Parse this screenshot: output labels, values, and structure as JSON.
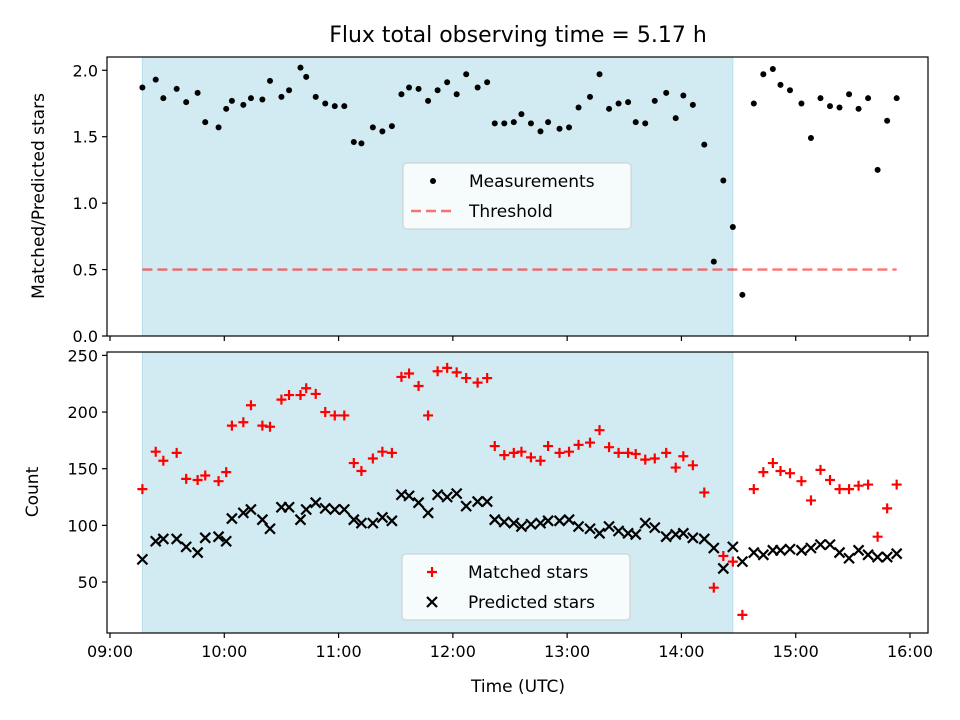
{
  "chart_data": [
    {
      "type": "scatter",
      "title": "Flux total observing time = 5.17 h",
      "xlabel": "",
      "ylabel": "Matched/Predicted stars",
      "xlim": [
        "09:00",
        "16:00"
      ],
      "ylim": [
        0,
        2.1
      ],
      "yticks": [
        "0.0",
        "0.5",
        "1.0",
        "1.5",
        "2.0"
      ],
      "xticks": [],
      "shaded_span": {
        "start": "09:17",
        "end": "14:27",
        "color": "#add8e6"
      },
      "legend_position": "center-right",
      "legend": [
        {
          "label": "Measurements",
          "marker": "dot",
          "color": "#000000"
        },
        {
          "label": "Threshold",
          "marker": "dashed-line",
          "color": "#ff0000"
        }
      ],
      "threshold": {
        "value": 0.5,
        "from": "09:17",
        "to": "15:53",
        "color": "#ff0000"
      },
      "series": [
        {
          "name": "Measurements",
          "color": "#000000",
          "points": [
            [
              "09:17",
              1.87
            ],
            [
              "09:24",
              1.93
            ],
            [
              "09:28",
              1.79
            ],
            [
              "09:35",
              1.86
            ],
            [
              "09:40",
              1.76
            ],
            [
              "09:46",
              1.83
            ],
            [
              "09:50",
              1.61
            ],
            [
              "09:57",
              1.57
            ],
            [
              "10:01",
              1.71
            ],
            [
              "10:04",
              1.77
            ],
            [
              "10:10",
              1.74
            ],
            [
              "10:14",
              1.79
            ],
            [
              "10:20",
              1.78
            ],
            [
              "10:24",
              1.92
            ],
            [
              "10:30",
              1.8
            ],
            [
              "10:34",
              1.85
            ],
            [
              "10:40",
              2.02
            ],
            [
              "10:43",
              1.95
            ],
            [
              "10:48",
              1.8
            ],
            [
              "10:53",
              1.75
            ],
            [
              "10:58",
              1.73
            ],
            [
              "11:03",
              1.73
            ],
            [
              "11:08",
              1.46
            ],
            [
              "11:12",
              1.45
            ],
            [
              "11:18",
              1.57
            ],
            [
              "11:23",
              1.54
            ],
            [
              "11:28",
              1.58
            ],
            [
              "11:33",
              1.82
            ],
            [
              "11:37",
              1.87
            ],
            [
              "11:42",
              1.86
            ],
            [
              "11:47",
              1.77
            ],
            [
              "11:52",
              1.85
            ],
            [
              "11:57",
              1.91
            ],
            [
              "12:02",
              1.82
            ],
            [
              "12:07",
              1.97
            ],
            [
              "12:13",
              1.87
            ],
            [
              "12:18",
              1.91
            ],
            [
              "12:22",
              1.6
            ],
            [
              "12:27",
              1.6
            ],
            [
              "12:32",
              1.61
            ],
            [
              "12:36",
              1.67
            ],
            [
              "12:41",
              1.6
            ],
            [
              "12:46",
              1.54
            ],
            [
              "12:50",
              1.61
            ],
            [
              "12:56",
              1.56
            ],
            [
              "13:01",
              1.57
            ],
            [
              "13:06",
              1.72
            ],
            [
              "13:12",
              1.8
            ],
            [
              "13:17",
              1.97
            ],
            [
              "13:22",
              1.71
            ],
            [
              "13:27",
              1.75
            ],
            [
              "13:32",
              1.76
            ],
            [
              "13:36",
              1.61
            ],
            [
              "13:41",
              1.6
            ],
            [
              "13:46",
              1.77
            ],
            [
              "13:52",
              1.83
            ],
            [
              "13:57",
              1.64
            ],
            [
              "14:01",
              1.81
            ],
            [
              "14:06",
              1.74
            ],
            [
              "14:12",
              1.44
            ],
            [
              "14:17",
              0.56
            ],
            [
              "14:22",
              1.17
            ],
            [
              "14:27",
              0.82
            ],
            [
              "14:32",
              0.31
            ],
            [
              "14:38",
              1.75
            ],
            [
              "14:43",
              1.97
            ],
            [
              "14:48",
              2.01
            ],
            [
              "14:52",
              1.89
            ],
            [
              "14:57",
              1.85
            ],
            [
              "15:03",
              1.75
            ],
            [
              "15:08",
              1.49
            ],
            [
              "15:13",
              1.79
            ],
            [
              "15:18",
              1.73
            ],
            [
              "15:23",
              1.72
            ],
            [
              "15:28",
              1.82
            ],
            [
              "15:33",
              1.71
            ],
            [
              "15:38",
              1.79
            ],
            [
              "15:43",
              1.25
            ],
            [
              "15:48",
              1.62
            ],
            [
              "15:53",
              1.79
            ]
          ]
        }
      ]
    },
    {
      "type": "scatter",
      "title": "",
      "xlabel": "Time (UTC)",
      "ylabel": "Count",
      "xlim": [
        "09:00",
        "16:00"
      ],
      "ylim": [
        5,
        253
      ],
      "yticks": [
        "50",
        "100",
        "150",
        "200",
        "250"
      ],
      "xticks": [
        "09:00",
        "10:00",
        "11:00",
        "12:00",
        "13:00",
        "14:00",
        "15:00",
        "16:00"
      ],
      "shaded_span": {
        "start": "09:17",
        "end": "14:27",
        "color": "#add8e6"
      },
      "legend_position": "lower-center",
      "legend": [
        {
          "label": "Matched stars",
          "marker": "plus",
          "color": "#ff0000"
        },
        {
          "label": "Predicted stars",
          "marker": "x",
          "color": "#000000"
        }
      ],
      "series": [
        {
          "name": "Matched stars",
          "color": "#ff0000",
          "marker": "plus",
          "points": [
            [
              "09:17",
              132
            ],
            [
              "09:24",
              165
            ],
            [
              "09:28",
              157
            ],
            [
              "09:35",
              164
            ],
            [
              "09:40",
              141
            ],
            [
              "09:46",
              140
            ],
            [
              "09:50",
              144
            ],
            [
              "09:57",
              139
            ],
            [
              "10:01",
              147
            ],
            [
              "10:04",
              188
            ],
            [
              "10:10",
              191
            ],
            [
              "10:14",
              206
            ],
            [
              "10:20",
              188
            ],
            [
              "10:24",
              187
            ],
            [
              "10:30",
              211
            ],
            [
              "10:34",
              215
            ],
            [
              "10:40",
              215
            ],
            [
              "10:43",
              221
            ],
            [
              "10:48",
              216
            ],
            [
              "10:53",
              200
            ],
            [
              "10:58",
              197
            ],
            [
              "11:03",
              197
            ],
            [
              "11:08",
              155
            ],
            [
              "11:12",
              148
            ],
            [
              "11:18",
              159
            ],
            [
              "11:23",
              165
            ],
            [
              "11:28",
              164
            ],
            [
              "11:33",
              231
            ],
            [
              "11:37",
              234
            ],
            [
              "11:42",
              223
            ],
            [
              "11:47",
              197
            ],
            [
              "11:52",
              236
            ],
            [
              "11:57",
              239
            ],
            [
              "12:02",
              235
            ],
            [
              "12:07",
              230
            ],
            [
              "12:13",
              226
            ],
            [
              "12:18",
              230
            ],
            [
              "12:22",
              170
            ],
            [
              "12:27",
              162
            ],
            [
              "12:32",
              164
            ],
            [
              "12:36",
              165
            ],
            [
              "12:41",
              160
            ],
            [
              "12:46",
              157
            ],
            [
              "12:50",
              170
            ],
            [
              "12:56",
              164
            ],
            [
              "13:01",
              165
            ],
            [
              "13:06",
              171
            ],
            [
              "13:12",
              173
            ],
            [
              "13:17",
              184
            ],
            [
              "13:22",
              169
            ],
            [
              "13:27",
              164
            ],
            [
              "13:32",
              164
            ],
            [
              "13:36",
              163
            ],
            [
              "13:41",
              158
            ],
            [
              "13:46",
              159
            ],
            [
              "13:52",
              164
            ],
            [
              "13:57",
              151
            ],
            [
              "14:01",
              161
            ],
            [
              "14:06",
              153
            ],
            [
              "14:12",
              129
            ],
            [
              "14:17",
              45
            ],
            [
              "14:22",
              73
            ],
            [
              "14:27",
              68
            ],
            [
              "14:32",
              21
            ],
            [
              "14:38",
              132
            ],
            [
              "14:43",
              147
            ],
            [
              "14:48",
              155
            ],
            [
              "14:52",
              148
            ],
            [
              "14:57",
              146
            ],
            [
              "15:03",
              139
            ],
            [
              "15:08",
              122
            ],
            [
              "15:13",
              149
            ],
            [
              "15:18",
              140
            ],
            [
              "15:23",
              132
            ],
            [
              "15:28",
              132
            ],
            [
              "15:33",
              135
            ],
            [
              "15:38",
              136
            ],
            [
              "15:43",
              90
            ],
            [
              "15:48",
              115
            ],
            [
              "15:53",
              136
            ]
          ]
        },
        {
          "name": "Predicted stars",
          "color": "#000000",
          "marker": "x",
          "points": [
            [
              "09:17",
              70
            ],
            [
              "09:24",
              86
            ],
            [
              "09:28",
              88
            ],
            [
              "09:35",
              88
            ],
            [
              "09:40",
              81
            ],
            [
              "09:46",
              76
            ],
            [
              "09:50",
              89
            ],
            [
              "09:57",
              90
            ],
            [
              "10:01",
              86
            ],
            [
              "10:04",
              106
            ],
            [
              "10:10",
              111
            ],
            [
              "10:14",
              114
            ],
            [
              "10:20",
              105
            ],
            [
              "10:24",
              97
            ],
            [
              "10:30",
              116
            ],
            [
              "10:34",
              116
            ],
            [
              "10:40",
              105
            ],
            [
              "10:43",
              114
            ],
            [
              "10:48",
              120
            ],
            [
              "10:53",
              115
            ],
            [
              "10:58",
              114
            ],
            [
              "11:03",
              114
            ],
            [
              "11:08",
              105
            ],
            [
              "11:12",
              102
            ],
            [
              "11:18",
              102
            ],
            [
              "11:23",
              107
            ],
            [
              "11:28",
              104
            ],
            [
              "11:33",
              127
            ],
            [
              "11:37",
              126
            ],
            [
              "11:42",
              120
            ],
            [
              "11:47",
              111
            ],
            [
              "11:52",
              127
            ],
            [
              "11:57",
              125
            ],
            [
              "12:02",
              128
            ],
            [
              "12:07",
              117
            ],
            [
              "12:13",
              121
            ],
            [
              "12:18",
              121
            ],
            [
              "12:22",
              105
            ],
            [
              "12:27",
              103
            ],
            [
              "12:32",
              102
            ],
            [
              "12:36",
              99
            ],
            [
              "12:41",
              101
            ],
            [
              "12:46",
              102
            ],
            [
              "12:50",
              104
            ],
            [
              "12:56",
              104
            ],
            [
              "13:01",
              105
            ],
            [
              "13:06",
              99
            ],
            [
              "13:12",
              97
            ],
            [
              "13:17",
              93
            ],
            [
              "13:22",
              99
            ],
            [
              "13:27",
              95
            ],
            [
              "13:32",
              93
            ],
            [
              "13:36",
              92
            ],
            [
              "13:41",
              102
            ],
            [
              "13:46",
              98
            ],
            [
              "13:52",
              90
            ],
            [
              "13:57",
              92
            ],
            [
              "14:01",
              93
            ],
            [
              "14:06",
              89
            ],
            [
              "14:12",
              88
            ],
            [
              "14:17",
              80
            ],
            [
              "14:22",
              62
            ],
            [
              "14:27",
              81
            ],
            [
              "14:32",
              68
            ],
            [
              "14:38",
              76
            ],
            [
              "14:43",
              74
            ],
            [
              "14:48",
              78
            ],
            [
              "14:52",
              78
            ],
            [
              "14:57",
              79
            ],
            [
              "15:03",
              78
            ],
            [
              "15:08",
              80
            ],
            [
              "15:13",
              83
            ],
            [
              "15:18",
              83
            ],
            [
              "15:23",
              76
            ],
            [
              "15:28",
              71
            ],
            [
              "15:33",
              78
            ],
            [
              "15:38",
              74
            ],
            [
              "15:43",
              72
            ],
            [
              "15:48",
              72
            ],
            [
              "15:53",
              75
            ]
          ]
        }
      ]
    }
  ]
}
